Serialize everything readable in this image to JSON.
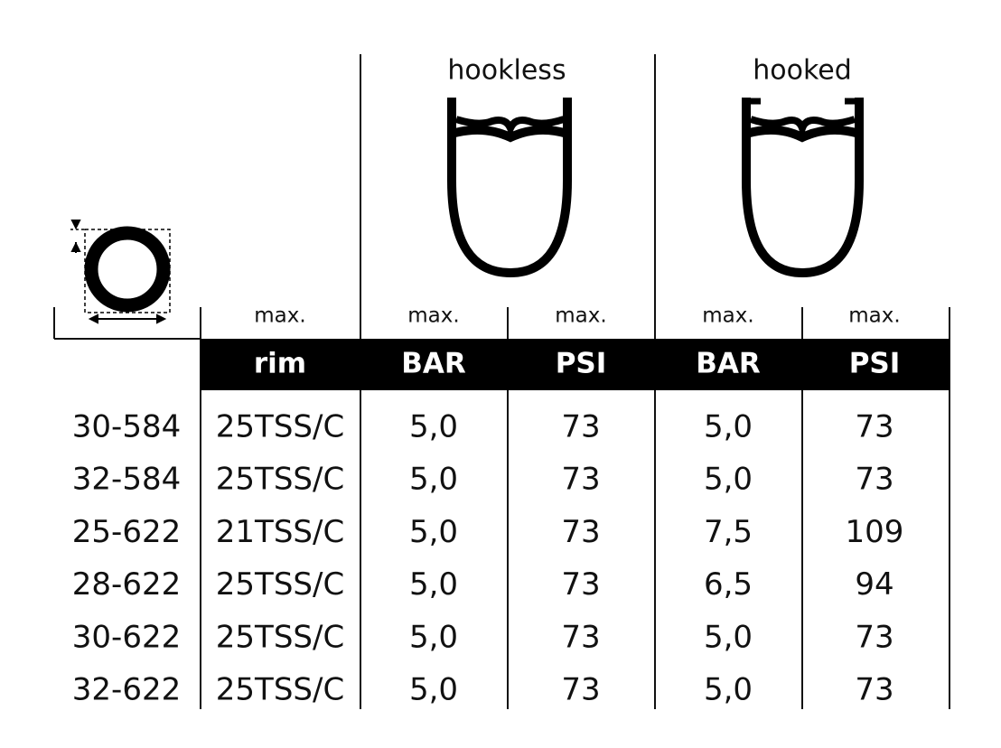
{
  "header": {
    "groups": [
      "hookless",
      "hooked"
    ],
    "max_labels": [
      "max.",
      "max.",
      "max.",
      "max.",
      "max."
    ],
    "columns": [
      "rim",
      "BAR",
      "PSI",
      "BAR",
      "PSI"
    ]
  },
  "table": {
    "rows": [
      [
        "30-584",
        "25TSS/C",
        "5,0",
        "73",
        "5,0",
        "73"
      ],
      [
        "32-584",
        "25TSS/C",
        "5,0",
        "73",
        "5,0",
        "73"
      ],
      [
        "25-622",
        "21TSS/C",
        "5,0",
        "73",
        "7,5",
        "109"
      ],
      [
        "28-622",
        "25TSS/C",
        "5,0",
        "73",
        "6,5",
        "94"
      ],
      [
        "30-622",
        "25TSS/C",
        "5,0",
        "73",
        "5,0",
        "73"
      ],
      [
        "32-622",
        "25TSS/C",
        "5,0",
        "73",
        "5,0",
        "73"
      ]
    ]
  }
}
